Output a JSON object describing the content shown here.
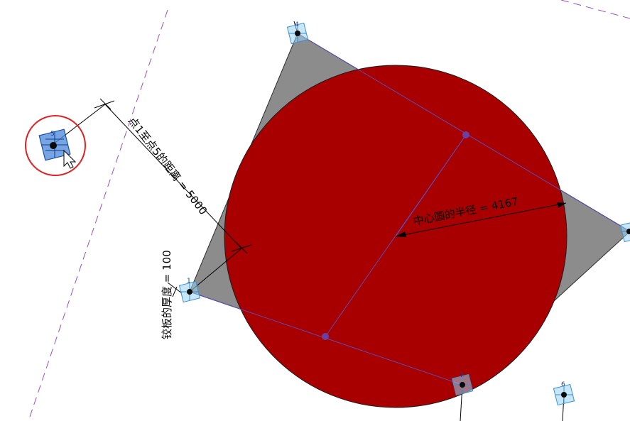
{
  "view": {
    "background": "#ffffff",
    "ref_line_color": "#9b4fc9",
    "plate_color": "#8c8c8c",
    "circle_fill": "#a80000",
    "guide_color": "#5b4bb5",
    "grip_color": "#9bd3ee",
    "selection_color": "#3b78d8",
    "highlight_ring_color": "#e02020"
  },
  "dimensions": {
    "distance_label": "点1至点5的距离 = 5000",
    "radius_label": "中心圆的半径 = 4167",
    "thickness_label": "铰板的厚度 = 100"
  },
  "points": [
    {
      "id": "1",
      "label": "1",
      "selected": false
    },
    {
      "id": "4",
      "label": "4",
      "selected": false
    },
    {
      "id": "5",
      "label": "5",
      "selected": true
    },
    {
      "id": "6",
      "label": "6",
      "selected": false
    },
    {
      "id": "7",
      "label": "7",
      "selected": false
    },
    {
      "id": "8",
      "label": "",
      "selected": false
    }
  ]
}
